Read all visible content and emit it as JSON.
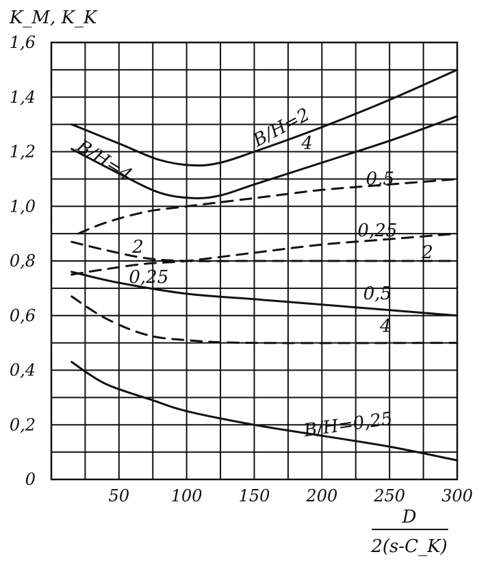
{
  "chart_data": {
    "type": "line",
    "ylabel": "K_M, K_K",
    "xlabel_numerator": "D",
    "xlabel_denominator": "2(s-C_K)",
    "xlim": [
      0,
      300
    ],
    "ylim": [
      0,
      1.6
    ],
    "grid": true,
    "x_ticks": [
      {
        "value": 50,
        "label": "50"
      },
      {
        "value": 100,
        "label": "100"
      },
      {
        "value": 150,
        "label": "150"
      },
      {
        "value": 200,
        "label": "200"
      },
      {
        "value": 250,
        "label": "250"
      },
      {
        "value": 300,
        "label": "300"
      }
    ],
    "y_ticks": [
      {
        "value": 0,
        "label": "0"
      },
      {
        "value": 0.2,
        "label": "0,2"
      },
      {
        "value": 0.4,
        "label": "0,4"
      },
      {
        "value": 0.6,
        "label": "0,6"
      },
      {
        "value": 0.8,
        "label": "0,8"
      },
      {
        "value": 1.0,
        "label": "1,0"
      },
      {
        "value": 1.2,
        "label": "1,2"
      },
      {
        "value": 1.4,
        "label": "1,4"
      },
      {
        "value": 1.6,
        "label": "1,6"
      }
    ],
    "series": [
      {
        "style": "solid",
        "x": [
          15,
          50,
          80,
          105,
          125,
          150,
          200,
          250,
          300
        ],
        "y": [
          1.3,
          1.23,
          1.17,
          1.15,
          1.16,
          1.2,
          1.29,
          1.39,
          1.5
        ]
      },
      {
        "style": "solid",
        "x": [
          15,
          50,
          80,
          105,
          125,
          150,
          200,
          250,
          300
        ],
        "y": [
          1.21,
          1.12,
          1.05,
          1.03,
          1.04,
          1.08,
          1.16,
          1.24,
          1.33
        ]
      },
      {
        "style": "solid",
        "x": [
          15,
          50,
          100,
          150,
          200,
          250,
          300
        ],
        "y": [
          0.76,
          0.72,
          0.68,
          0.66,
          0.64,
          0.62,
          0.6
        ]
      },
      {
        "style": "solid",
        "x": [
          15,
          40,
          75,
          100,
          150,
          200,
          250,
          300
        ],
        "y": [
          0.43,
          0.35,
          0.29,
          0.25,
          0.2,
          0.16,
          0.12,
          0.07
        ]
      },
      {
        "style": "dashed",
        "x": [
          20,
          40,
          70,
          100,
          150,
          200,
          250,
          300
        ],
        "y": [
          0.9,
          0.94,
          0.98,
          1.0,
          1.03,
          1.06,
          1.08,
          1.1
        ]
      },
      {
        "style": "dashed",
        "x": [
          15,
          40,
          70,
          100,
          150,
          200,
          250,
          300
        ],
        "y": [
          0.75,
          0.77,
          0.79,
          0.8,
          0.83,
          0.86,
          0.88,
          0.9
        ]
      },
      {
        "style": "dashed",
        "x": [
          15,
          40,
          70,
          100,
          150,
          300
        ],
        "y": [
          0.87,
          0.84,
          0.81,
          0.8,
          0.8,
          0.8
        ]
      },
      {
        "style": "dashed",
        "x": [
          15,
          40,
          70,
          100,
          150,
          300
        ],
        "y": [
          0.67,
          0.59,
          0.53,
          0.51,
          0.5,
          0.5
        ]
      }
    ],
    "annotations": [
      {
        "text": "B/H=2",
        "x": 172,
        "y": 1.27,
        "rotate": -28
      },
      {
        "text": "4",
        "x": 189,
        "y": 1.21,
        "rotate": 0
      },
      {
        "text": "B/H=4",
        "x": 37,
        "y": 1.15,
        "rotate": 32
      },
      {
        "text": "0,5",
        "x": 243,
        "y": 1.08,
        "rotate": 0
      },
      {
        "text": "0,25",
        "x": 241,
        "y": 0.89,
        "rotate": 0
      },
      {
        "text": "2",
        "x": 64,
        "y": 0.83,
        "rotate": 0
      },
      {
        "text": "2",
        "x": 278,
        "y": 0.81,
        "rotate": 0
      },
      {
        "text": "0,25",
        "x": 72,
        "y": 0.72,
        "rotate": 0
      },
      {
        "text": "0,5",
        "x": 241,
        "y": 0.66,
        "rotate": 0
      },
      {
        "text": "4",
        "x": 247,
        "y": 0.54,
        "rotate": 0
      },
      {
        "text": "B/H=0,25",
        "x": 220,
        "y": 0.18,
        "rotate": -8
      }
    ]
  }
}
